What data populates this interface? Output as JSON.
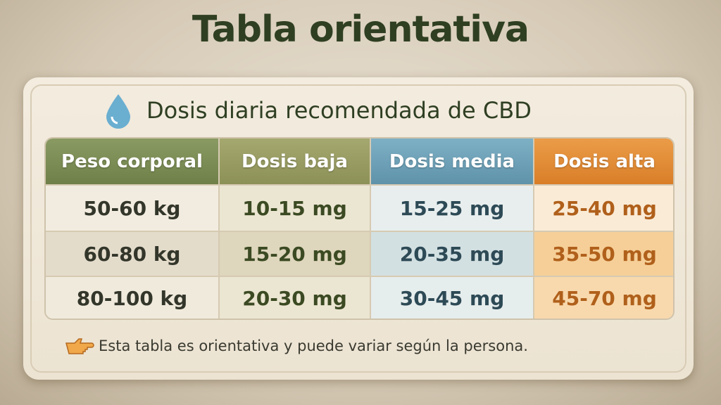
{
  "title": "Tabla orientativa",
  "card": {
    "heading": "Dosis diaria recomendada de CBD",
    "table": {
      "headers": [
        "Peso corporal",
        "Dosis baja",
        "Dosis media",
        "Dosis alta"
      ],
      "rows": [
        [
          "50-60 kg",
          "10-15 mg",
          "15-25 mg",
          "25-40 mg"
        ],
        [
          "60-80 kg",
          "15-20 mg",
          "20-35 mg",
          "35-50 mg"
        ],
        [
          "80-100 kg",
          "20-30 mg",
          "30-45 mg",
          "45-70 mg"
        ]
      ]
    },
    "note": "Esta tabla es orientativa y puede variar según la persona."
  }
}
